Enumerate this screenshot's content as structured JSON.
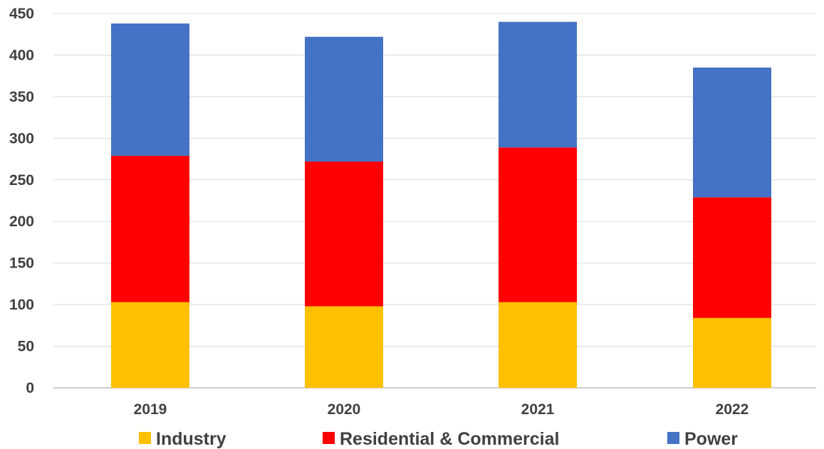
{
  "chart_data": {
    "type": "bar",
    "stacked": true,
    "categories": [
      "2019",
      "2020",
      "2021",
      "2022"
    ],
    "series": [
      {
        "name": "Industry",
        "color": "#FFC000",
        "values": [
          103,
          98,
          103,
          84
        ]
      },
      {
        "name": "Residential & Commercial",
        "color": "#FF0000",
        "values": [
          176,
          174,
          186,
          145
        ]
      },
      {
        "name": "Power",
        "color": "#4472C4",
        "values": [
          159,
          150,
          151,
          156
        ]
      }
    ],
    "title": "",
    "xlabel": "",
    "ylabel": "",
    "ylim": [
      0,
      450
    ],
    "yticks": [
      "0",
      "50",
      "100",
      "150",
      "200",
      "250",
      "300",
      "350",
      "400",
      "450"
    ],
    "grid": true,
    "legend_position": "bottom"
  }
}
